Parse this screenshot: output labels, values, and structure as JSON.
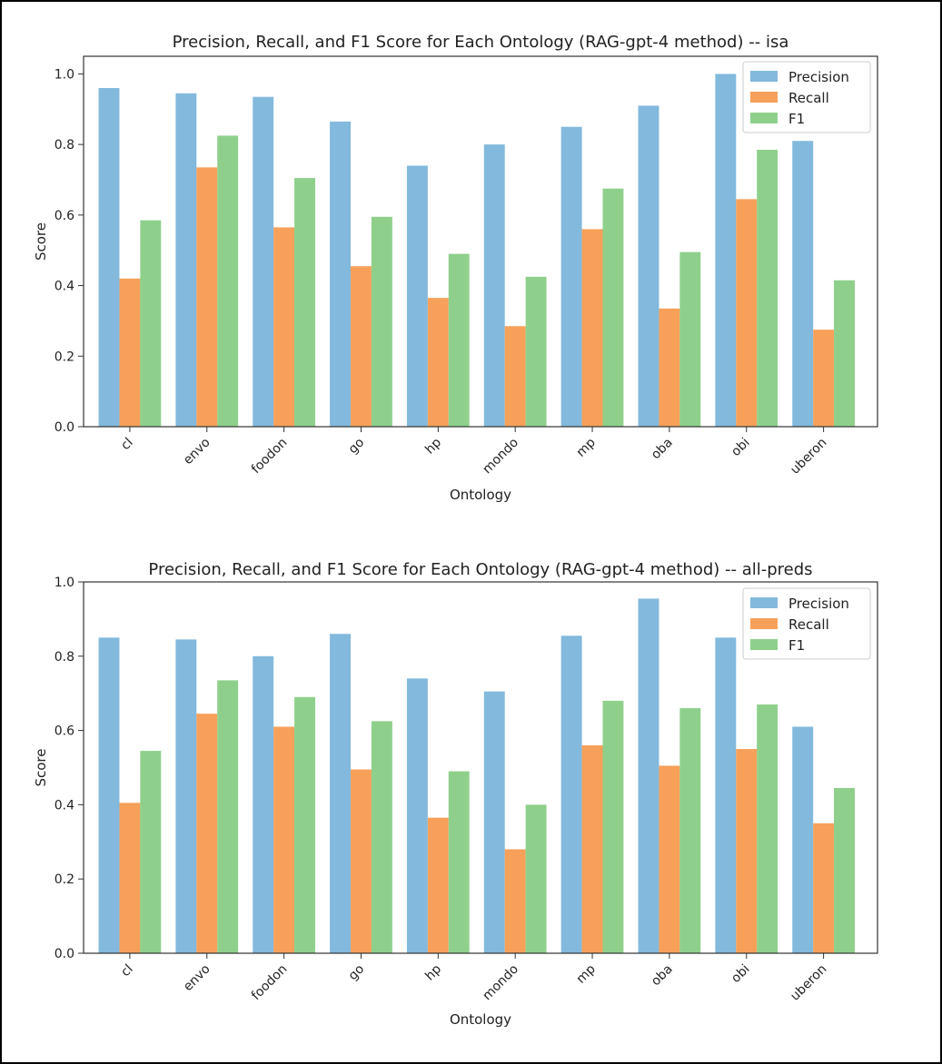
{
  "chart_data": [
    {
      "type": "bar",
      "title": "Precision, Recall, and F1 Score for Each Ontology (RAG-gpt-4 method) -- isa",
      "xlabel": "Ontology",
      "ylabel": "Score",
      "ylim": [
        0,
        1.05
      ],
      "yticks": [
        "0.0",
        "0.2",
        "0.4",
        "0.6",
        "0.8",
        "1.0"
      ],
      "categories": [
        "cl",
        "envo",
        "foodon",
        "go",
        "hp",
        "mondo",
        "mp",
        "oba",
        "obi",
        "uberon"
      ],
      "series": [
        {
          "name": "Precision",
          "color": "#82b9dd",
          "values": [
            0.96,
            0.945,
            0.935,
            0.865,
            0.74,
            0.8,
            0.85,
            0.91,
            1.0,
            0.81
          ]
        },
        {
          "name": "Recall",
          "color": "#f6a05a",
          "values": [
            0.42,
            0.735,
            0.565,
            0.455,
            0.365,
            0.285,
            0.56,
            0.335,
            0.645,
            0.275
          ]
        },
        {
          "name": "F1",
          "color": "#8ed08b",
          "values": [
            0.585,
            0.825,
            0.705,
            0.595,
            0.49,
            0.425,
            0.675,
            0.495,
            0.785,
            0.415
          ]
        }
      ],
      "grid": false,
      "legend_position": "top-right"
    },
    {
      "type": "bar",
      "title": "Precision, Recall, and F1 Score for Each Ontology (RAG-gpt-4 method) -- all-preds",
      "xlabel": "Ontology",
      "ylabel": "Score",
      "ylim": [
        0,
        1.0
      ],
      "yticks": [
        "0.0",
        "0.2",
        "0.4",
        "0.6",
        "0.8",
        "1.0"
      ],
      "categories": [
        "cl",
        "envo",
        "foodon",
        "go",
        "hp",
        "mondo",
        "mp",
        "oba",
        "obi",
        "uberon"
      ],
      "series": [
        {
          "name": "Precision",
          "color": "#82b9dd",
          "values": [
            0.85,
            0.845,
            0.8,
            0.86,
            0.74,
            0.705,
            0.855,
            0.955,
            0.85,
            0.61
          ]
        },
        {
          "name": "Recall",
          "color": "#f6a05a",
          "values": [
            0.405,
            0.645,
            0.61,
            0.495,
            0.365,
            0.28,
            0.56,
            0.505,
            0.55,
            0.35
          ]
        },
        {
          "name": "F1",
          "color": "#8ed08b",
          "values": [
            0.545,
            0.735,
            0.69,
            0.625,
            0.49,
            0.4,
            0.68,
            0.66,
            0.67,
            0.445
          ]
        }
      ],
      "grid": false,
      "legend_position": "top-right"
    }
  ]
}
